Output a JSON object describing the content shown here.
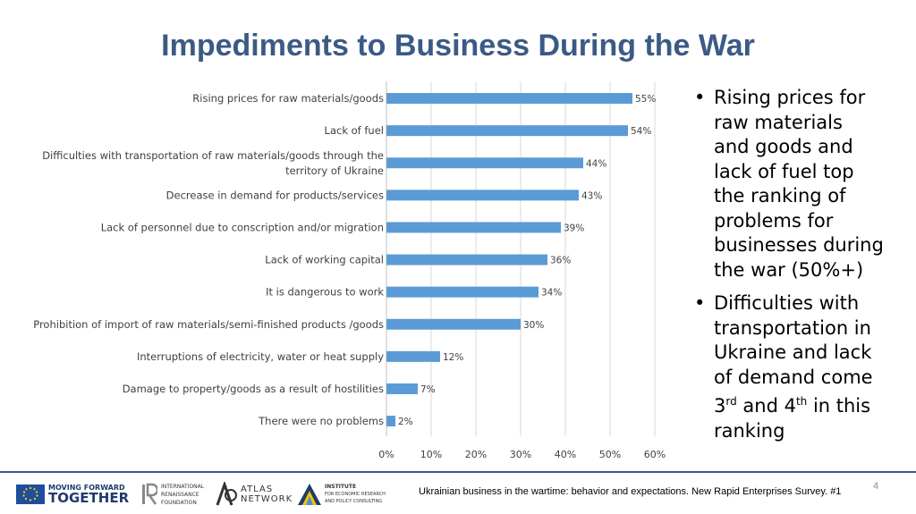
{
  "title": "Impediments to Business During the War",
  "chart_data": {
    "type": "bar",
    "orientation": "horizontal",
    "categories": [
      "Rising prices for raw materials/goods",
      "Lack of fuel",
      "Difficulties with transportation of raw materials/goods through the territory of Ukraine",
      "Decrease in demand for products/services",
      "Lack of personnel due to conscription and/or migration",
      "Lack of working capital",
      "It is dangerous to work",
      "Prohibition of import of raw materials/semi-finished products /goods",
      "Interruptions of electricity, water or heat supply",
      "Damage to property/goods as a result of hostilities",
      "There were no problems"
    ],
    "values": [
      55,
      54,
      44,
      43,
      39,
      36,
      34,
      30,
      12,
      7,
      2
    ],
    "data_labels": [
      "55%",
      "54%",
      "44%",
      "43%",
      "39%",
      "36%",
      "34%",
      "30%",
      "12%",
      "7%",
      "2%"
    ],
    "x_ticks": [
      "0%",
      "10%",
      "20%",
      "30%",
      "40%",
      "50%",
      "60%"
    ],
    "xlim": [
      0,
      60
    ],
    "grid": "vertical",
    "bar_color": "#5b9bd5"
  },
  "bullets": [
    {
      "lines": [
        "Rising prices for",
        "raw materials",
        "and goods and",
        "lack of fuel top",
        "the ranking of",
        "problems for",
        "businesses during",
        "the war (50%+)"
      ]
    },
    {
      "lines": [
        "Difficulties with",
        "transportation in",
        "Ukraine and lack",
        "of demand come"
      ]
    }
  ],
  "bullet_last_line": {
    "num1": "3",
    "sup1": "rd",
    "mid": " and 4",
    "sup2": "th",
    "rest": " in this",
    "final": "ranking"
  },
  "footer": {
    "note": "Ukrainian business in the wartime: behavior and expectations. New Rapid Enterprises Survey. #1",
    "page": "4"
  },
  "logos": {
    "mft_line1": "MOVING FORWARD",
    "mft_line2": "TOGETHER",
    "irf_lines": [
      "INTERNATIONAL",
      "RENAISSANCE",
      "FOUNDATION"
    ],
    "atlas_lines": [
      "ATLAS",
      "NETWORK"
    ],
    "ier_lines": [
      "INSTITUTE",
      "FOR ECONOMIC RESEARCH",
      "AND POLICY CONSULTING"
    ]
  }
}
